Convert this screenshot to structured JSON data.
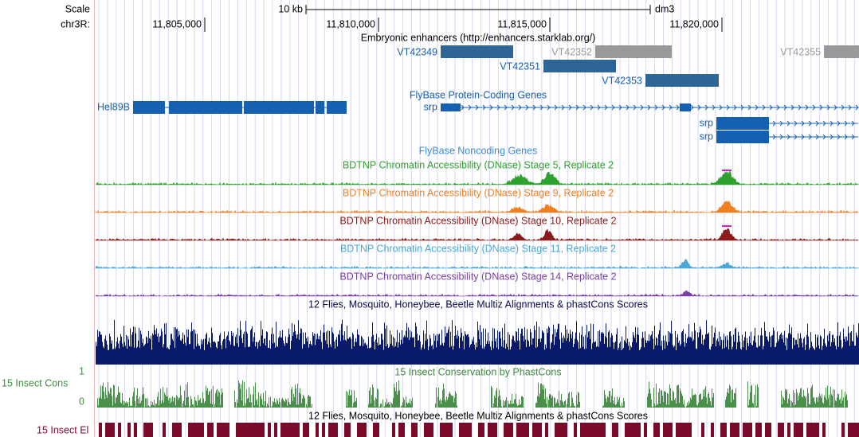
{
  "header": {
    "scale_label": "Scale",
    "scale_bar": "10 kb",
    "assembly": "dm3",
    "chrom": "chr3R:",
    "positions": [
      "11,805,000",
      "11,810,000",
      "11,815,000",
      "11,820,000"
    ]
  },
  "tracks": {
    "enhancers": {
      "title": "Embryonic enhancers (http://enhancers.starklab.org/)",
      "items": [
        "VT42349",
        "VT42352",
        "VT42351",
        "VT42353",
        "VT42355"
      ]
    },
    "protein_coding": {
      "title": "FlyBase Protein-Coding Genes",
      "genes": [
        "Hel89B",
        "srp",
        "srp",
        "srp"
      ]
    },
    "noncoding": {
      "title": "FlyBase Noncoding Genes"
    },
    "dnase": [
      "BDTNP Chromatin Accessibility (DNase) Stage 5, Replicate 2",
      "BDTNP Chromatin Accessibility (DNase) Stage 9, Replicate 2",
      "BDTNP Chromatin Accessibility (DNase) Stage 10, Replicate 2",
      "BDTNP Chromatin Accessibility (DNase) Stage 11, Replicate 2",
      "BDTNP Chromatin Accessibility (DNase) Stage 14, Replicate 2"
    ],
    "multiz": {
      "title": "12 Flies, Mosquito, Honeybee, Beetle Multiz Alignments & phastCons Scores"
    },
    "insect_cons": {
      "label": "15 Insect Cons",
      "title": "15 Insect Conservation by PhastCons",
      "axis_max": 1,
      "axis_min": 0
    },
    "insect_el": {
      "label": "15 Insect El",
      "title": "12 Flies, Mosquito, Honeybee, Beetle Multiz Alignments & phastCons Scores"
    }
  }
}
